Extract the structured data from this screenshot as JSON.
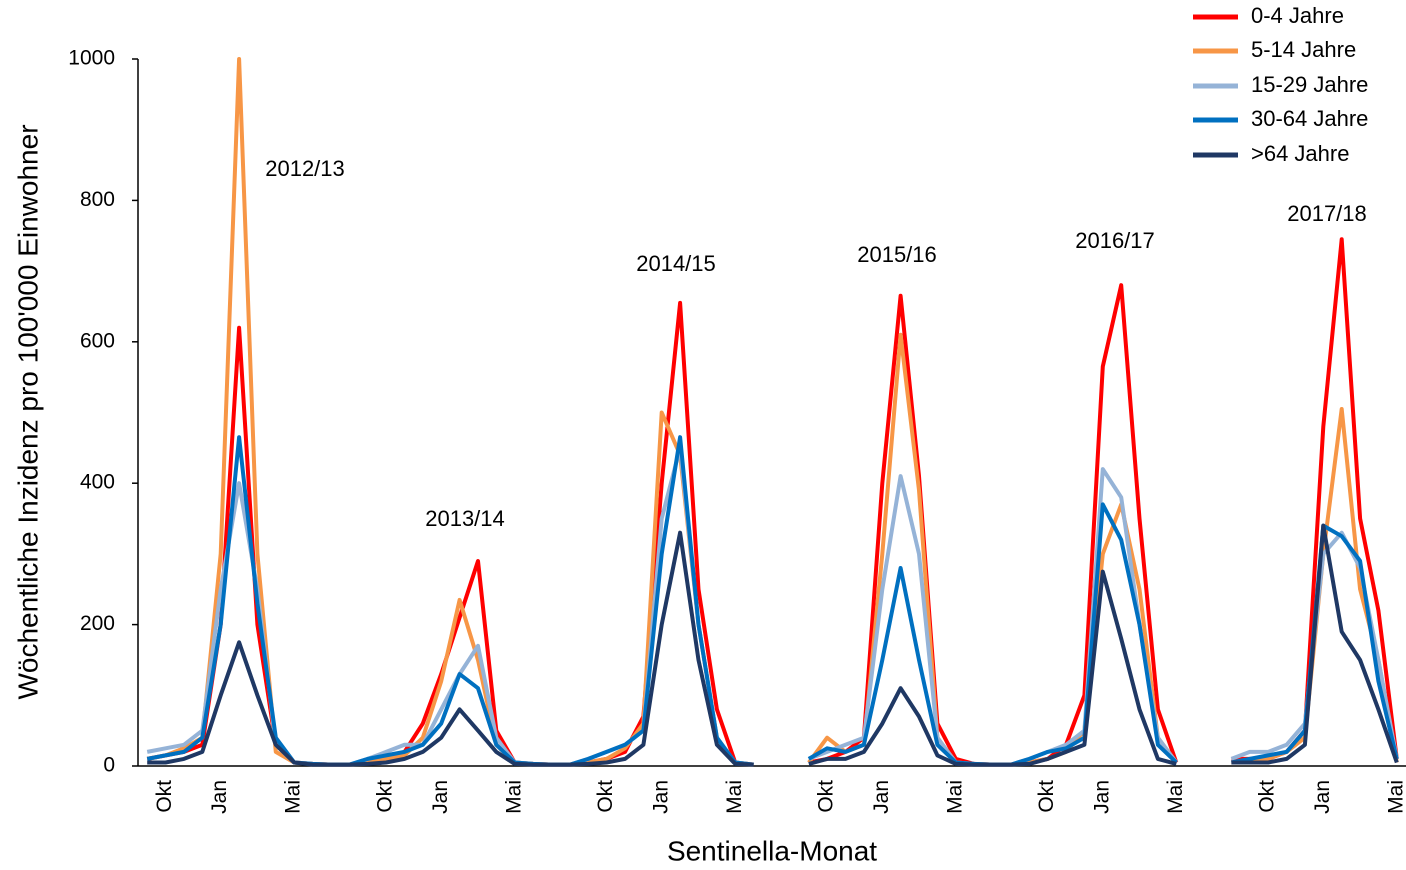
{
  "chart_data": {
    "type": "line",
    "xlabel": "Sentinella-Monat",
    "ylabel": "Wöchentliche Inzidenz pro 100'000 Einwohner",
    "ylim": [
      0,
      1000
    ],
    "yticks": [
      0,
      200,
      400,
      600,
      800,
      1000
    ],
    "annotations": [
      "2012/13",
      "2013/14",
      "2014/15",
      "2015/16",
      "2016/17",
      "2017/18"
    ],
    "legend": "top-right",
    "categories": [
      null,
      "Okt",
      null,
      null,
      "Jan",
      null,
      null,
      null,
      "Mai",
      null,
      null,
      null,
      null,
      "Okt",
      null,
      null,
      "Jan",
      null,
      null,
      null,
      "Mai",
      null,
      null,
      null,
      null,
      "Okt",
      null,
      null,
      "Jan",
      null,
      null,
      null,
      "Mai",
      null,
      null,
      null,
      null,
      "Okt",
      null,
      null,
      "Jan",
      null,
      null,
      null,
      "Mai",
      null,
      null,
      null,
      null,
      "Okt",
      null,
      null,
      "Jan",
      null,
      null,
      null,
      "Mai",
      null,
      null,
      null,
      null,
      "Okt",
      null,
      null,
      "Jan",
      null,
      null,
      null,
      "Mai"
    ],
    "series": [
      {
        "name": "0-4 Jahre",
        "color": "#ff0000",
        "values": [
          10,
          15,
          20,
          30,
          200,
          620,
          200,
          30,
          5,
          3,
          2,
          2,
          5,
          10,
          20,
          60,
          130,
          210,
          290,
          50,
          5,
          3,
          2,
          2,
          5,
          10,
          20,
          70,
          400,
          655,
          250,
          80,
          5,
          2,
          null,
          null,
          5,
          10,
          20,
          40,
          400,
          665,
          410,
          60,
          10,
          3,
          2,
          2,
          5,
          10,
          30,
          100,
          565,
          680,
          350,
          80,
          5,
          null,
          null,
          10,
          10,
          10,
          20,
          50,
          480,
          745,
          350,
          220,
          10
        ]
      },
      {
        "name": "5-14 Jahre",
        "color": "#f79646",
        "values": [
          10,
          15,
          25,
          40,
          300,
          1000,
          300,
          20,
          5,
          3,
          2,
          2,
          5,
          10,
          15,
          40,
          120,
          235,
          150,
          30,
          5,
          3,
          2,
          2,
          5,
          10,
          25,
          60,
          500,
          440,
          200,
          40,
          5,
          2,
          null,
          null,
          5,
          40,
          20,
          30,
          300,
          610,
          390,
          40,
          5,
          3,
          2,
          2,
          5,
          10,
          20,
          50,
          300,
          370,
          250,
          40,
          5,
          null,
          null,
          5,
          5,
          10,
          20,
          40,
          300,
          505,
          250,
          150,
          5
        ]
      },
      {
        "name": "15-29 Jahre",
        "color": "#95b3d7",
        "values": [
          20,
          25,
          30,
          50,
          250,
          400,
          250,
          30,
          5,
          3,
          2,
          2,
          10,
          20,
          30,
          30,
          80,
          130,
          170,
          40,
          5,
          3,
          2,
          2,
          10,
          20,
          30,
          50,
          350,
          450,
          200,
          40,
          5,
          2,
          null,
          null,
          10,
          20,
          30,
          40,
          250,
          410,
          300,
          40,
          5,
          3,
          2,
          2,
          10,
          20,
          30,
          50,
          420,
          380,
          200,
          40,
          5,
          null,
          null,
          10,
          20,
          20,
          30,
          60,
          300,
          330,
          280,
          150,
          10
        ]
      },
      {
        "name": "30-64 Jahre",
        "color": "#0070c0",
        "values": [
          10,
          15,
          20,
          40,
          200,
          465,
          230,
          40,
          5,
          3,
          2,
          2,
          10,
          15,
          20,
          30,
          60,
          130,
          110,
          30,
          5,
          3,
          2,
          2,
          10,
          20,
          30,
          50,
          300,
          465,
          200,
          40,
          5,
          2,
          null,
          null,
          10,
          25,
          20,
          30,
          150,
          280,
          150,
          30,
          5,
          3,
          2,
          2,
          10,
          20,
          25,
          40,
          370,
          320,
          200,
          30,
          5,
          null,
          null,
          5,
          10,
          15,
          20,
          50,
          340,
          325,
          290,
          120,
          10
        ]
      },
      {
        "name": ">64 Jahre",
        "color": "#1f3864",
        "values": [
          5,
          5,
          10,
          20,
          100,
          175,
          100,
          30,
          5,
          2,
          2,
          2,
          3,
          5,
          10,
          20,
          40,
          80,
          50,
          20,
          3,
          2,
          2,
          2,
          3,
          5,
          10,
          30,
          200,
          330,
          150,
          30,
          3,
          2,
          null,
          null,
          3,
          10,
          10,
          20,
          60,
          110,
          70,
          15,
          3,
          2,
          2,
          2,
          3,
          10,
          20,
          30,
          275,
          180,
          80,
          10,
          3,
          null,
          null,
          5,
          5,
          5,
          10,
          30,
          340,
          190,
          150,
          80,
          5
        ]
      }
    ]
  }
}
